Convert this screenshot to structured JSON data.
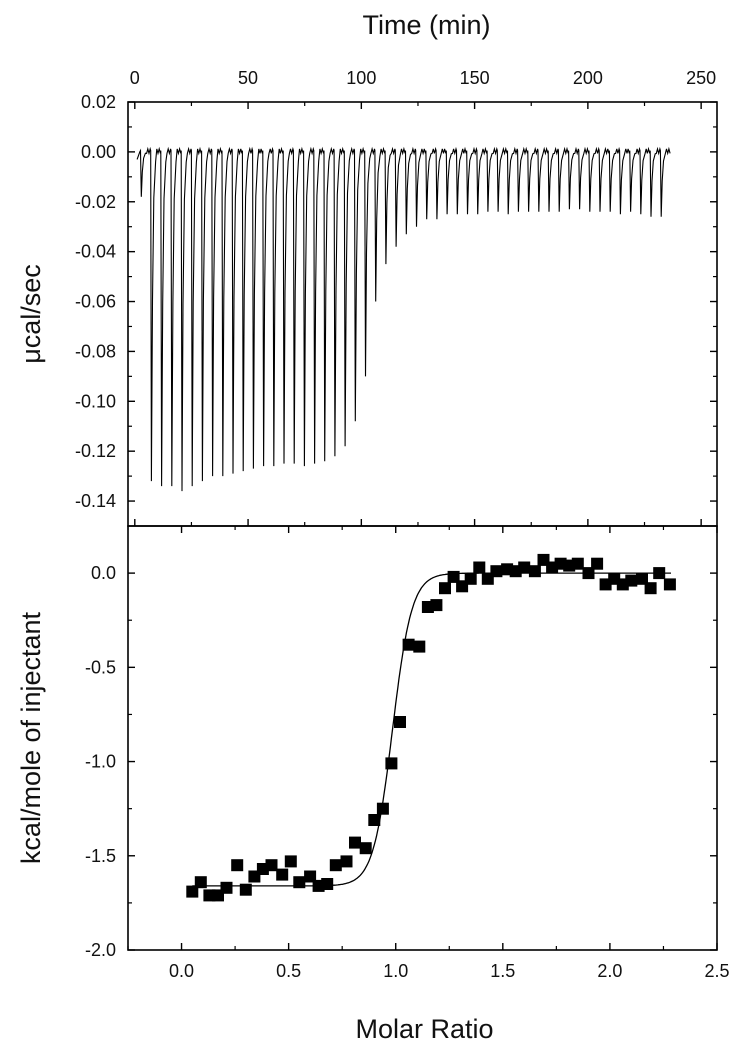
{
  "chart_data": [
    {
      "panel": "raw-thermogram",
      "type": "line",
      "xlabel": "Time (min)",
      "ylabel": "μcal/sec",
      "xlim": [
        -3,
        257
      ],
      "ylim": [
        -0.15,
        0.02
      ],
      "xticks": [
        0,
        50,
        100,
        150,
        200,
        250
      ],
      "yticks": [
        0.02,
        0.0,
        -0.02,
        -0.04,
        -0.06,
        -0.08,
        -0.1,
        -0.12,
        -0.14
      ],
      "xtick_labels": [
        "0",
        "50",
        "100",
        "150",
        "200",
        "250"
      ],
      "ytick_labels": [
        "0.02",
        "0.00",
        "-0.02",
        "-0.04",
        "-0.06",
        "-0.08",
        "-0.10",
        "-0.12",
        "-0.14"
      ],
      "baseline": 0.0,
      "injection_times": [
        2.5,
        7,
        11.5,
        16,
        20.5,
        25,
        29.5,
        34,
        38.5,
        43,
        47.5,
        52,
        56.5,
        61,
        65.5,
        70,
        74.5,
        79,
        83.5,
        88,
        92.5,
        97,
        101.5,
        106,
        110.5,
        115,
        119.5,
        124,
        128.5,
        133,
        137.5,
        142,
        146.5,
        151,
        155.5,
        160,
        164.5,
        169,
        173.5,
        178,
        182.5,
        187,
        191.5,
        196,
        200.5,
        205,
        209.5,
        214,
        218.5,
        223,
        227.5,
        232
      ],
      "peak_values": [
        -0.018,
        -0.132,
        -0.134,
        -0.134,
        -0.136,
        -0.134,
        -0.132,
        -0.13,
        -0.13,
        -0.129,
        -0.128,
        -0.127,
        -0.126,
        -0.126,
        -0.125,
        -0.125,
        -0.126,
        -0.125,
        -0.124,
        -0.122,
        -0.118,
        -0.108,
        -0.09,
        -0.06,
        -0.045,
        -0.038,
        -0.033,
        -0.03,
        -0.027,
        -0.027,
        -0.025,
        -0.025,
        -0.025,
        -0.025,
        -0.024,
        -0.024,
        -0.025,
        -0.024,
        -0.024,
        -0.024,
        -0.024,
        -0.024,
        -0.023,
        -0.023,
        -0.024,
        -0.024,
        -0.024,
        -0.025,
        -0.024,
        -0.025,
        -0.026,
        -0.026
      ]
    },
    {
      "panel": "binding-isotherm",
      "type": "scatter",
      "xlabel": "Molar Ratio",
      "ylabel": "kcal/mole of injectant",
      "xlim": [
        -0.25,
        2.5
      ],
      "ylim": [
        -2.0,
        0.25
      ],
      "xticks": [
        0.0,
        0.5,
        1.0,
        1.5,
        2.0,
        2.5
      ],
      "yticks": [
        0.0,
        -0.5,
        -1.0,
        -1.5,
        -2.0
      ],
      "xtick_labels": [
        "0.0",
        "0.5",
        "1.0",
        "1.5",
        "2.0",
        "2.5"
      ],
      "ytick_labels": [
        "0.0",
        "-0.5",
        "-1.0",
        "-1.5",
        "-2.0"
      ],
      "marker": "square",
      "points": [
        [
          0.05,
          -1.69
        ],
        [
          0.09,
          -1.64
        ],
        [
          0.13,
          -1.71
        ],
        [
          0.17,
          -1.71
        ],
        [
          0.21,
          -1.67
        ],
        [
          0.26,
          -1.55
        ],
        [
          0.3,
          -1.68
        ],
        [
          0.34,
          -1.61
        ],
        [
          0.38,
          -1.57
        ],
        [
          0.42,
          -1.55
        ],
        [
          0.47,
          -1.6
        ],
        [
          0.51,
          -1.53
        ],
        [
          0.55,
          -1.64
        ],
        [
          0.6,
          -1.61
        ],
        [
          0.64,
          -1.66
        ],
        [
          0.68,
          -1.65
        ],
        [
          0.72,
          -1.55
        ],
        [
          0.77,
          -1.53
        ],
        [
          0.81,
          -1.43
        ],
        [
          0.86,
          -1.46
        ],
        [
          0.9,
          -1.31
        ],
        [
          0.94,
          -1.25
        ],
        [
          0.98,
          -1.01
        ],
        [
          1.02,
          -0.79
        ],
        [
          1.06,
          -0.38
        ],
        [
          1.11,
          -0.39
        ],
        [
          1.15,
          -0.18
        ],
        [
          1.19,
          -0.17
        ],
        [
          1.23,
          -0.08
        ],
        [
          1.27,
          -0.02
        ],
        [
          1.31,
          -0.07
        ],
        [
          1.35,
          -0.03
        ],
        [
          1.39,
          0.03
        ],
        [
          1.43,
          -0.03
        ],
        [
          1.47,
          0.01
        ],
        [
          1.52,
          0.02
        ],
        [
          1.56,
          0.01
        ],
        [
          1.6,
          0.03
        ],
        [
          1.65,
          0.01
        ],
        [
          1.69,
          0.07
        ],
        [
          1.73,
          0.03
        ],
        [
          1.77,
          0.05
        ],
        [
          1.81,
          0.04
        ],
        [
          1.85,
          0.05
        ],
        [
          1.9,
          0.0
        ],
        [
          1.94,
          0.05
        ],
        [
          1.98,
          -0.06
        ],
        [
          2.02,
          -0.03
        ],
        [
          2.06,
          -0.06
        ],
        [
          2.1,
          -0.04
        ],
        [
          2.15,
          -0.03
        ],
        [
          2.19,
          -0.08
        ],
        [
          2.23,
          0.0
        ],
        [
          2.28,
          -0.06
        ]
      ],
      "fit_curve": {
        "lower": -1.66,
        "upper": 0.0,
        "midpoint": 0.985,
        "width": 0.045
      }
    }
  ]
}
